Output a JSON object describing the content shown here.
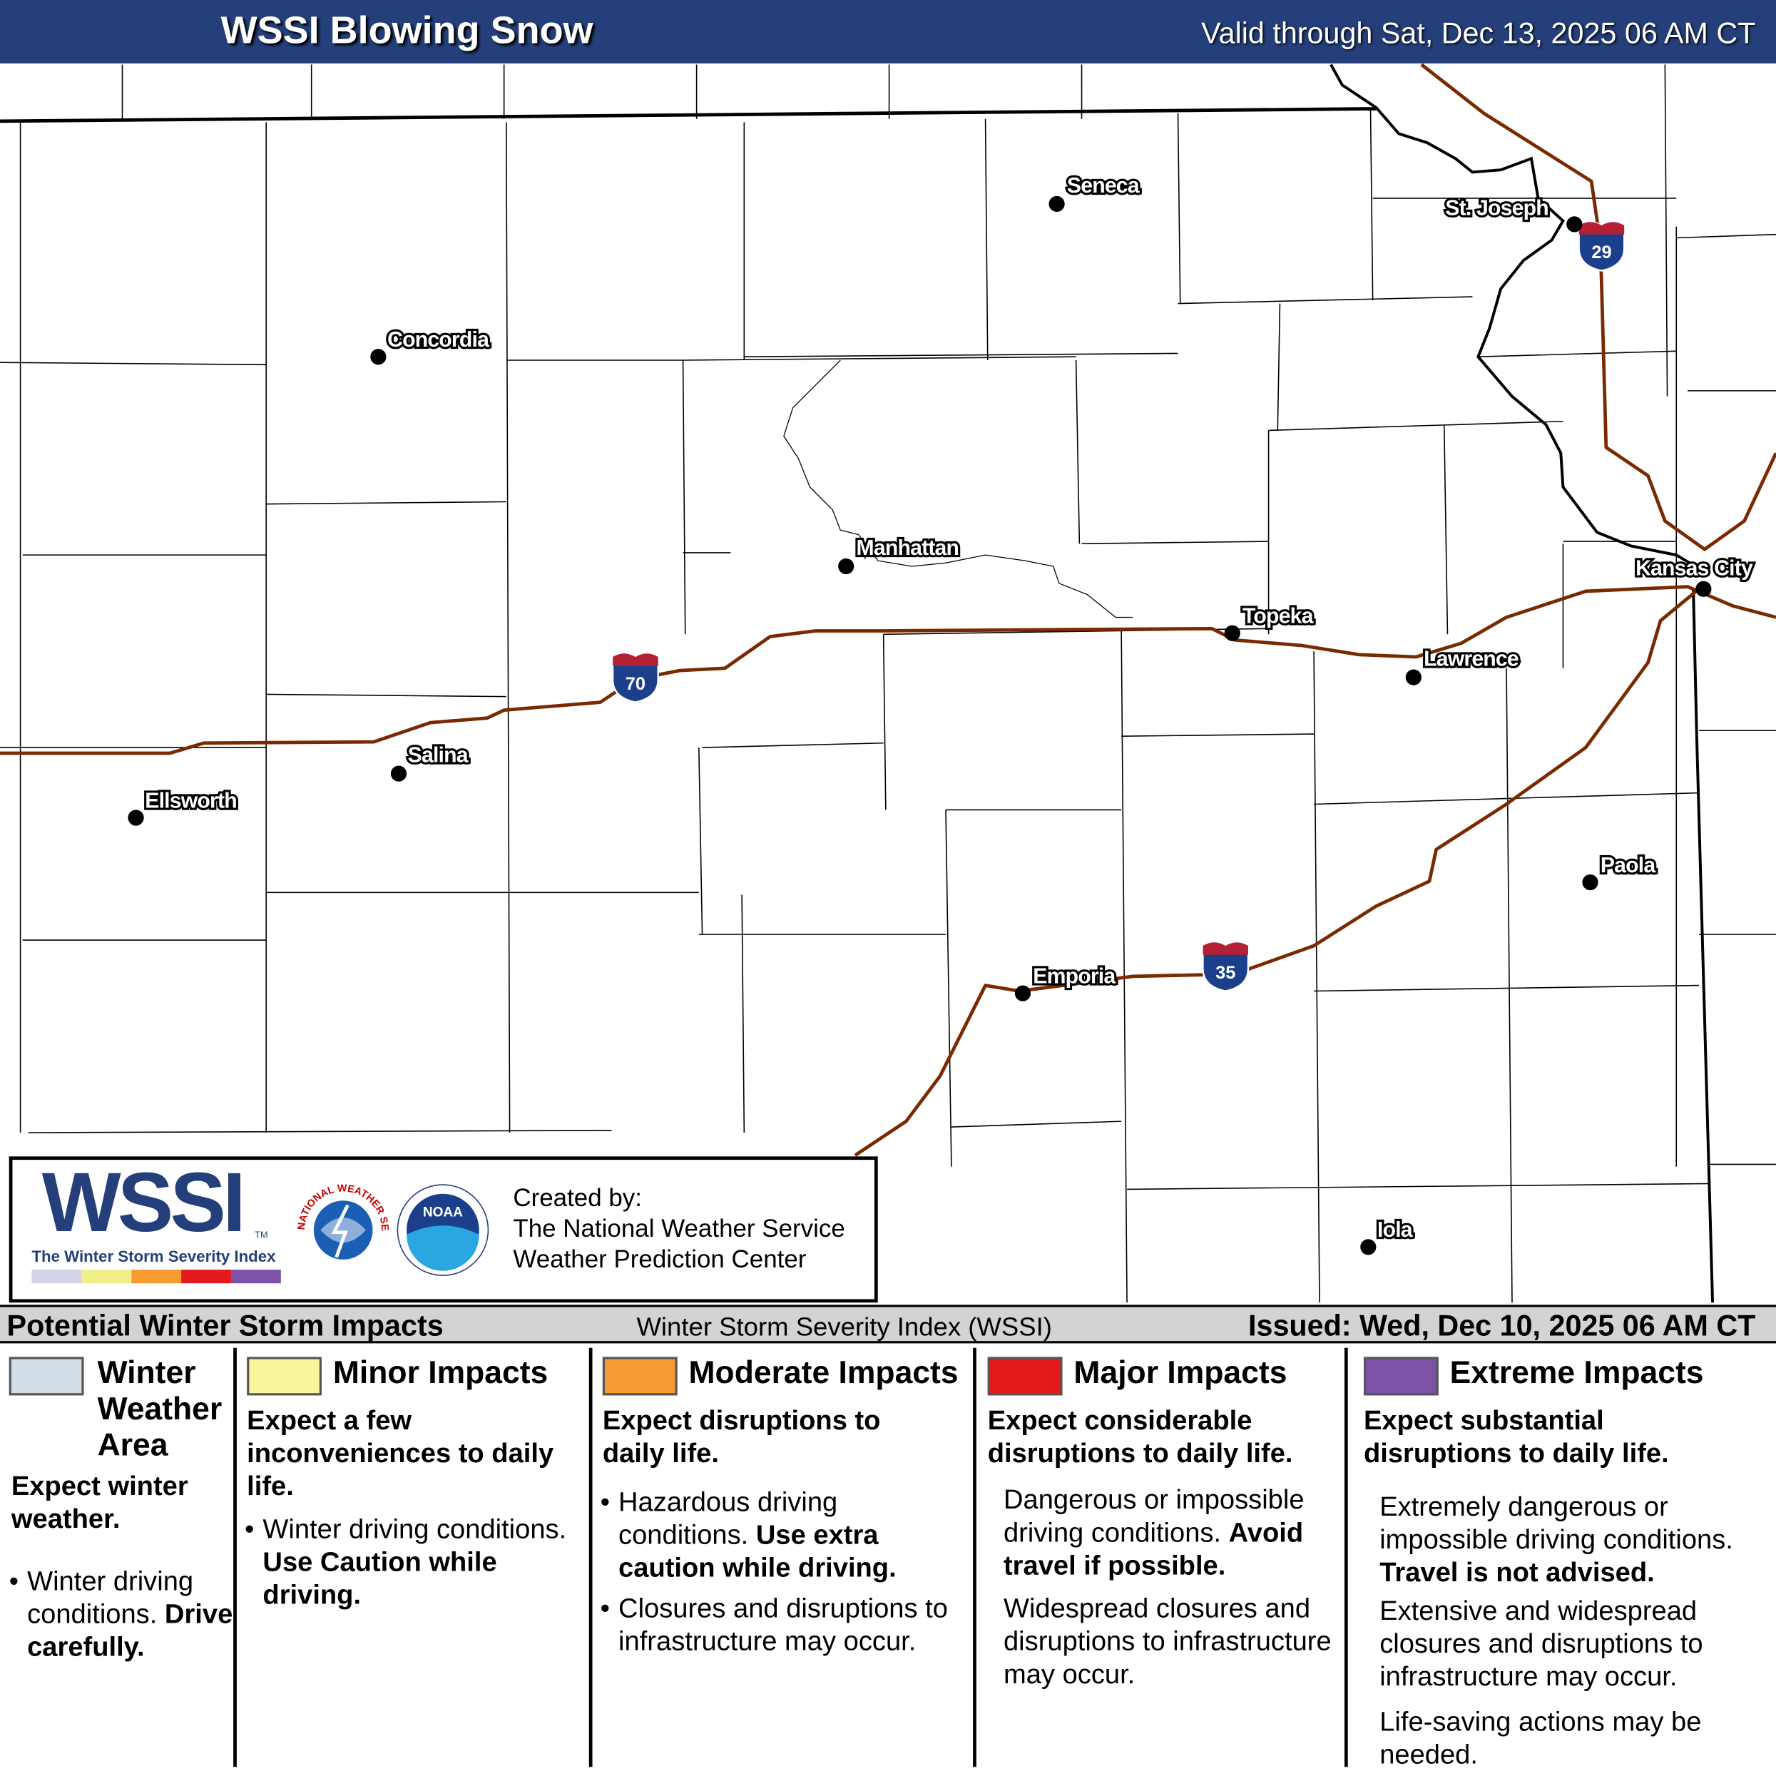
{
  "header": {
    "title": "WSSI Blowing Snow",
    "valid": "Valid through Sat, Dec 13, 2025 06 AM CT"
  },
  "colors": {
    "header": "#243f7a",
    "interstate": "#7a2a00",
    "winter": "#d3dde6",
    "minor": "#f8f59c",
    "moderate": "#f89a32",
    "major": "#e31a1c",
    "extreme": "#7b52a6"
  },
  "cities": [
    "Seneca",
    "St. Joseph",
    "Concordia",
    "Manhattan",
    "Topeka",
    "Kansas City",
    "Lawrence",
    "Salina",
    "Ellsworth",
    "Paola",
    "Emporia",
    "Iola"
  ],
  "interstates": [
    "70",
    "35",
    "29"
  ],
  "logo": {
    "wssi": "WSSI",
    "tm": "TM",
    "subtitle": "The Winter Storm Severity Index",
    "created_by": "Created by:",
    "org1": "The National Weather Service",
    "org2": "Weather Prediction Center",
    "nws_text": "NATIONAL WEATHER SERVICE",
    "noaa_text": "NOAA"
  },
  "band": {
    "left": "Potential Winter Storm Impacts",
    "center": "Winter Storm Severity Index (WSSI)",
    "right": "Issued: Wed, Dec 10, 2025 06 AM CT"
  },
  "legend": [
    {
      "title": "Winter Weather Area",
      "head": "Expect winter weather.",
      "b1a": "Winter driving conditions.",
      "b1b": "Drive carefully."
    },
    {
      "title": "Minor Impacts",
      "head": "Expect a few inconveniences to daily life.",
      "b1a": "Winter driving conditions.",
      "b1b": "Use Caution while driving."
    },
    {
      "title": "Moderate Impacts",
      "head": "Expect disruptions to daily life.",
      "b1a": "Hazardous driving conditions.",
      "b1b": "Use extra caution while driving.",
      "b2": "Closures and disruptions to infrastructure may occur."
    },
    {
      "title": "Major Impacts",
      "head": "Expect considerable disruptions to daily life.",
      "b1a": "Dangerous or impossible driving conditions.",
      "b1b": "Avoid travel if possible.",
      "b2": "Widespread closures and disruptions to infrastructure may occur."
    },
    {
      "title": "Extreme Impacts",
      "head": "Expect substantial disruptions to daily life.",
      "b1a": "Extremely dangerous or impossible driving conditions.",
      "b1b": "Travel is not advised.",
      "b2": "Extensive and widespread closures and disruptions to infrastructure may occur.",
      "b3": "Life-saving actions may be needed."
    }
  ]
}
